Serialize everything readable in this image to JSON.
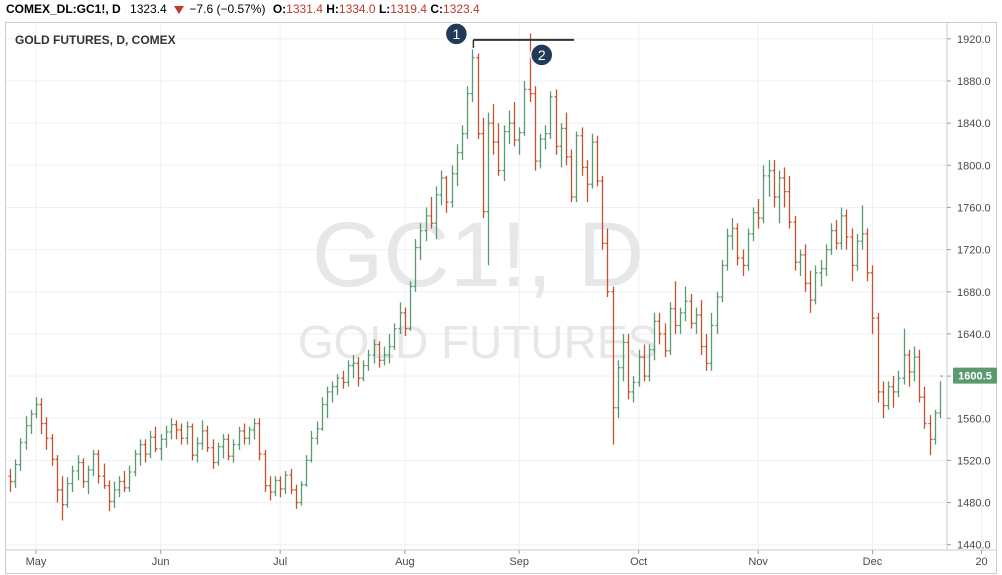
{
  "header": {
    "symbol": "COMEX_DL:GC1!, D",
    "last": "1323.4",
    "change": "−7.6 (−0.57%)",
    "open_label": "O:",
    "open": "1331.4",
    "high_label": "H:",
    "high": "1334.0",
    "low_label": "L:",
    "low": "1319.4",
    "close_label": "C:",
    "close": "1323.4"
  },
  "chart_data": {
    "type": "ohlc",
    "title": "GOLD FUTURES, D, COMEX",
    "watermark_symbol": "GC1!, D",
    "watermark_name": "GOLD FUTURES",
    "ylim": [
      1435,
      1935
    ],
    "yticks": [
      1440,
      1480,
      1520,
      1560,
      1600,
      1640,
      1680,
      1720,
      1760,
      1800,
      1840,
      1880,
      1920
    ],
    "xticks": [
      "May",
      "Jun",
      "Jul",
      "Aug",
      "Sep",
      "Oct",
      "Nov",
      "Dec",
      "20"
    ],
    "price_label": "1600.5",
    "colors": {
      "up": "#5a9a6e",
      "down": "#c8502f",
      "price_tag": "#5a9a6e",
      "marker": "#1f3b57"
    },
    "annotations": [
      {
        "text": "1",
        "price": 1919
      },
      {
        "text": "2",
        "price": 1919
      }
    ],
    "bars": [
      [
        1505,
        1512,
        1490,
        1500
      ],
      [
        1500,
        1521,
        1494,
        1516
      ],
      [
        1516,
        1541,
        1510,
        1537
      ],
      [
        1537,
        1562,
        1530,
        1553
      ],
      [
        1553,
        1568,
        1545,
        1564
      ],
      [
        1564,
        1580,
        1560,
        1573
      ],
      [
        1573,
        1579,
        1545,
        1555
      ],
      [
        1555,
        1561,
        1530,
        1541
      ],
      [
        1541,
        1545,
        1515,
        1521
      ],
      [
        1521,
        1525,
        1480,
        1492
      ],
      [
        1492,
        1505,
        1463,
        1478
      ],
      [
        1478,
        1504,
        1475,
        1498
      ],
      [
        1498,
        1515,
        1490,
        1510
      ],
      [
        1510,
        1525,
        1501,
        1518
      ],
      [
        1518,
        1522,
        1494,
        1500
      ],
      [
        1500,
        1515,
        1488,
        1511
      ],
      [
        1511,
        1530,
        1505,
        1526
      ],
      [
        1526,
        1530,
        1498,
        1505
      ],
      [
        1505,
        1517,
        1493,
        1496
      ],
      [
        1496,
        1501,
        1472,
        1481
      ],
      [
        1481,
        1500,
        1475,
        1492
      ],
      [
        1492,
        1505,
        1485,
        1500
      ],
      [
        1500,
        1510,
        1490,
        1494
      ],
      [
        1494,
        1515,
        1490,
        1509
      ],
      [
        1509,
        1530,
        1505,
        1526
      ],
      [
        1526,
        1540,
        1515,
        1535
      ],
      [
        1535,
        1540,
        1518,
        1526
      ],
      [
        1526,
        1548,
        1522,
        1542
      ],
      [
        1542,
        1552,
        1528,
        1531
      ],
      [
        1531,
        1545,
        1520,
        1540
      ],
      [
        1540,
        1553,
        1532,
        1547
      ],
      [
        1547,
        1560,
        1540,
        1554
      ],
      [
        1554,
        1558,
        1540,
        1549
      ],
      [
        1549,
        1555,
        1535,
        1541
      ],
      [
        1541,
        1557,
        1535,
        1552
      ],
      [
        1552,
        1555,
        1520,
        1525
      ],
      [
        1525,
        1542,
        1518,
        1536
      ],
      [
        1536,
        1558,
        1530,
        1548
      ],
      [
        1548,
        1553,
        1528,
        1532
      ],
      [
        1532,
        1540,
        1512,
        1518
      ],
      [
        1518,
        1537,
        1515,
        1533
      ],
      [
        1533,
        1545,
        1522,
        1540
      ],
      [
        1540,
        1545,
        1520,
        1524
      ],
      [
        1524,
        1540,
        1518,
        1535
      ],
      [
        1535,
        1552,
        1530,
        1548
      ],
      [
        1548,
        1555,
        1535,
        1541
      ],
      [
        1541,
        1552,
        1535,
        1549
      ],
      [
        1549,
        1560,
        1540,
        1555
      ],
      [
        1555,
        1560,
        1520,
        1526
      ],
      [
        1526,
        1530,
        1490,
        1496
      ],
      [
        1496,
        1505,
        1482,
        1490
      ],
      [
        1490,
        1505,
        1486,
        1501
      ],
      [
        1501,
        1505,
        1485,
        1493
      ],
      [
        1493,
        1510,
        1488,
        1506
      ],
      [
        1506,
        1512,
        1488,
        1492
      ],
      [
        1492,
        1497,
        1474,
        1480
      ],
      [
        1480,
        1500,
        1477,
        1497
      ],
      [
        1497,
        1525,
        1495,
        1520
      ],
      [
        1520,
        1548,
        1518,
        1541
      ],
      [
        1541,
        1557,
        1535,
        1550
      ],
      [
        1550,
        1580,
        1548,
        1573
      ],
      [
        1573,
        1590,
        1560,
        1585
      ],
      [
        1585,
        1595,
        1575,
        1590
      ],
      [
        1590,
        1602,
        1582,
        1598
      ],
      [
        1598,
        1605,
        1588,
        1594
      ],
      [
        1594,
        1615,
        1590,
        1610
      ],
      [
        1610,
        1620,
        1598,
        1612
      ],
      [
        1612,
        1618,
        1590,
        1598
      ],
      [
        1598,
        1615,
        1595,
        1610
      ],
      [
        1610,
        1625,
        1605,
        1620
      ],
      [
        1620,
        1635,
        1612,
        1630
      ],
      [
        1630,
        1633,
        1608,
        1615
      ],
      [
        1615,
        1628,
        1610,
        1620
      ],
      [
        1620,
        1640,
        1612,
        1628
      ],
      [
        1628,
        1650,
        1625,
        1645
      ],
      [
        1645,
        1670,
        1640,
        1660
      ],
      [
        1660,
        1665,
        1638,
        1645
      ],
      [
        1645,
        1690,
        1643,
        1685
      ],
      [
        1685,
        1730,
        1680,
        1722
      ],
      [
        1722,
        1745,
        1710,
        1738
      ],
      [
        1738,
        1760,
        1728,
        1752
      ],
      [
        1752,
        1770,
        1740,
        1745
      ],
      [
        1745,
        1780,
        1730,
        1772
      ],
      [
        1772,
        1795,
        1762,
        1788
      ],
      [
        1788,
        1790,
        1755,
        1765
      ],
      [
        1765,
        1800,
        1760,
        1792
      ],
      [
        1792,
        1820,
        1780,
        1812
      ],
      [
        1812,
        1838,
        1805,
        1830
      ],
      [
        1830,
        1875,
        1825,
        1868
      ],
      [
        1868,
        1910,
        1860,
        1902
      ],
      [
        1902,
        1906,
        1825,
        1830
      ],
      [
        1830,
        1845,
        1750,
        1756
      ],
      [
        1756,
        1850,
        1705,
        1840
      ],
      [
        1840,
        1858,
        1810,
        1822
      ],
      [
        1822,
        1840,
        1790,
        1795
      ],
      [
        1795,
        1838,
        1785,
        1832
      ],
      [
        1832,
        1852,
        1820,
        1840
      ],
      [
        1840,
        1860,
        1818,
        1824
      ],
      [
        1824,
        1836,
        1810,
        1831
      ],
      [
        1831,
        1880,
        1828,
        1872
      ],
      [
        1872,
        1925,
        1860,
        1868
      ],
      [
        1868,
        1875,
        1795,
        1804
      ],
      [
        1804,
        1830,
        1797,
        1825
      ],
      [
        1825,
        1838,
        1815,
        1830
      ],
      [
        1830,
        1870,
        1825,
        1865
      ],
      [
        1865,
        1872,
        1810,
        1818
      ],
      [
        1818,
        1840,
        1798,
        1835
      ],
      [
        1835,
        1850,
        1800,
        1808
      ],
      [
        1808,
        1815,
        1765,
        1770
      ],
      [
        1770,
        1832,
        1765,
        1828
      ],
      [
        1828,
        1836,
        1790,
        1798
      ],
      [
        1798,
        1805,
        1765,
        1782
      ],
      [
        1782,
        1830,
        1778,
        1822
      ],
      [
        1822,
        1828,
        1780,
        1785
      ],
      [
        1785,
        1790,
        1720,
        1726
      ],
      [
        1726,
        1740,
        1675,
        1680
      ],
      [
        1680,
        1685,
        1535,
        1570
      ],
      [
        1570,
        1615,
        1560,
        1608
      ],
      [
        1608,
        1640,
        1595,
        1632
      ],
      [
        1632,
        1640,
        1578,
        1585
      ],
      [
        1585,
        1600,
        1575,
        1594
      ],
      [
        1594,
        1625,
        1590,
        1618
      ],
      [
        1618,
        1630,
        1595,
        1600
      ],
      [
        1600,
        1630,
        1595,
        1625
      ],
      [
        1625,
        1660,
        1615,
        1652
      ],
      [
        1652,
        1660,
        1630,
        1640
      ],
      [
        1640,
        1650,
        1618,
        1624
      ],
      [
        1624,
        1670,
        1620,
        1664
      ],
      [
        1664,
        1690,
        1640,
        1648
      ],
      [
        1648,
        1665,
        1640,
        1660
      ],
      [
        1660,
        1685,
        1652,
        1671
      ],
      [
        1671,
        1678,
        1645,
        1650
      ],
      [
        1650,
        1665,
        1640,
        1658
      ],
      [
        1658,
        1672,
        1620,
        1628
      ],
      [
        1628,
        1640,
        1605,
        1612
      ],
      [
        1612,
        1660,
        1605,
        1648
      ],
      [
        1648,
        1680,
        1640,
        1675
      ],
      [
        1675,
        1710,
        1670,
        1705
      ],
      [
        1705,
        1740,
        1700,
        1733
      ],
      [
        1733,
        1750,
        1720,
        1740
      ],
      [
        1740,
        1745,
        1705,
        1712
      ],
      [
        1712,
        1720,
        1695,
        1705
      ],
      [
        1705,
        1740,
        1700,
        1735
      ],
      [
        1735,
        1760,
        1728,
        1755
      ],
      [
        1755,
        1768,
        1740,
        1750
      ],
      [
        1750,
        1800,
        1745,
        1790
      ],
      [
        1790,
        1805,
        1770,
        1795
      ],
      [
        1795,
        1805,
        1760,
        1770
      ],
      [
        1770,
        1795,
        1745,
        1788
      ],
      [
        1788,
        1798,
        1760,
        1775
      ],
      [
        1775,
        1790,
        1740,
        1746
      ],
      [
        1746,
        1752,
        1700,
        1708
      ],
      [
        1708,
        1720,
        1695,
        1715
      ],
      [
        1715,
        1725,
        1680,
        1688
      ],
      [
        1688,
        1700,
        1660,
        1672
      ],
      [
        1672,
        1705,
        1668,
        1698
      ],
      [
        1698,
        1710,
        1685,
        1702
      ],
      [
        1702,
        1725,
        1695,
        1720
      ],
      [
        1720,
        1745,
        1715,
        1738
      ],
      [
        1738,
        1748,
        1720,
        1726
      ],
      [
        1726,
        1760,
        1720,
        1752
      ],
      [
        1752,
        1758,
        1720,
        1732
      ],
      [
        1732,
        1740,
        1690,
        1705
      ],
      [
        1705,
        1735,
        1700,
        1728
      ],
      [
        1728,
        1762,
        1720,
        1735
      ],
      [
        1735,
        1740,
        1690,
        1698
      ],
      [
        1698,
        1705,
        1640,
        1655
      ],
      [
        1655,
        1660,
        1575,
        1585
      ],
      [
        1585,
        1595,
        1560,
        1572
      ],
      [
        1572,
        1595,
        1568,
        1590
      ],
      [
        1590,
        1600,
        1570,
        1585
      ],
      [
        1585,
        1605,
        1580,
        1598
      ],
      [
        1598,
        1645,
        1592,
        1620
      ],
      [
        1620,
        1625,
        1590,
        1604
      ],
      [
        1604,
        1628,
        1595,
        1618
      ],
      [
        1618,
        1625,
        1575,
        1580
      ],
      [
        1580,
        1590,
        1550,
        1555
      ],
      [
        1555,
        1563,
        1525,
        1540
      ],
      [
        1540,
        1568,
        1535,
        1565
      ],
      [
        1565,
        1595,
        1560,
        1600
      ]
    ]
  }
}
